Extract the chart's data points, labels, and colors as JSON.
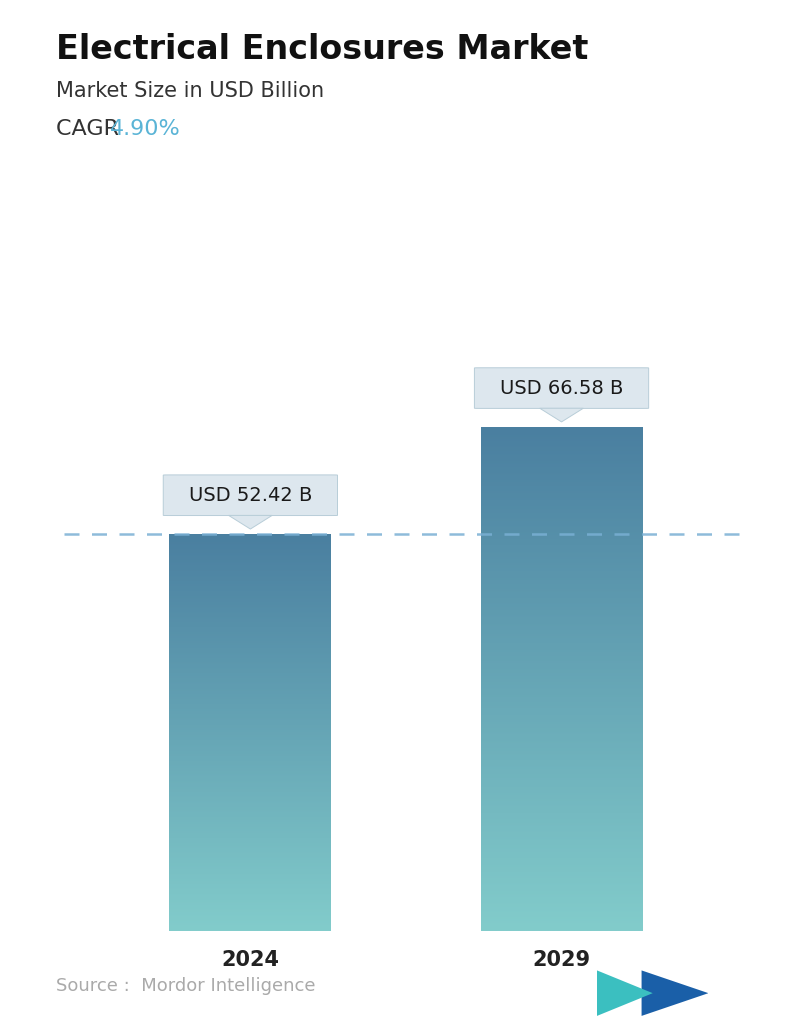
{
  "title": "Electrical Enclosures Market",
  "subtitle": "Market Size in USD Billion",
  "cagr_label": "CAGR ",
  "cagr_value": "4.90%",
  "cagr_color": "#5ab4d6",
  "categories": [
    "2024",
    "2029"
  ],
  "values": [
    52.42,
    66.58
  ],
  "labels": [
    "USD 52.42 B",
    "USD 66.58 B"
  ],
  "bar_top_color": "#4a7fa0",
  "bar_bottom_color": "#82cccb",
  "dashed_line_color": "#7ab0d4",
  "dashed_line_y": 52.42,
  "source_text": "Source :  Mordor Intelligence",
  "source_color": "#aaaaaa",
  "bg_color": "#ffffff",
  "title_fontsize": 24,
  "subtitle_fontsize": 15,
  "cagr_fontsize": 16,
  "label_fontsize": 14,
  "tick_fontsize": 15,
  "source_fontsize": 13,
  "ylim": [
    0,
    82
  ],
  "bar_width": 0.52
}
